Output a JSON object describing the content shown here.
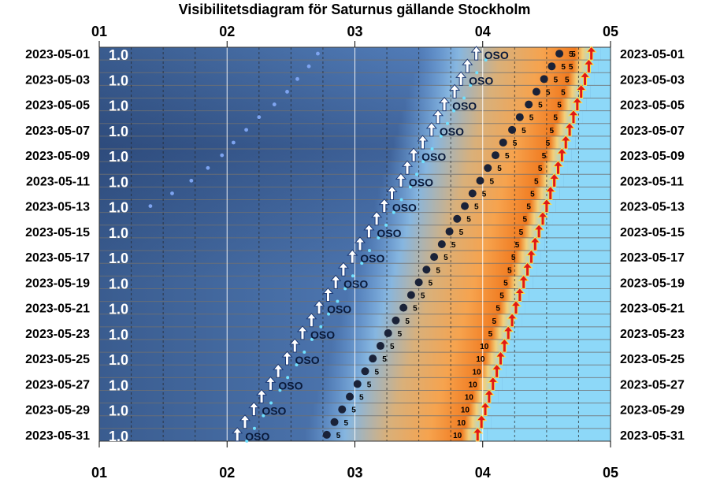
{
  "chart_data": {
    "type": "scatter",
    "title": "Visibilitetsdiagram för Saturnus gällande Stockholm",
    "x_ticks": [
      "01",
      "02",
      "03",
      "04",
      "05"
    ],
    "xlim": [
      1,
      5
    ],
    "dates": [
      "2023-05-01",
      "2023-05-02",
      "2023-05-03",
      "2023-05-04",
      "2023-05-05",
      "2023-05-06",
      "2023-05-07",
      "2023-05-08",
      "2023-05-09",
      "2023-05-10",
      "2023-05-11",
      "2023-05-12",
      "2023-05-13",
      "2023-05-14",
      "2023-05-15",
      "2023-05-16",
      "2023-05-17",
      "2023-05-18",
      "2023-05-19",
      "2023-05-20",
      "2023-05-21",
      "2023-05-22",
      "2023-05-23",
      "2023-05-24",
      "2023-05-25",
      "2023-05-26",
      "2023-05-27",
      "2023-05-28",
      "2023-05-29",
      "2023-05-30",
      "2023-05-31"
    ],
    "y_labels": [
      "2023-05-01",
      "2023-05-03",
      "2023-05-05",
      "2023-05-07",
      "2023-05-09",
      "2023-05-11",
      "2023-05-13",
      "2023-05-15",
      "2023-05-17",
      "2023-05-19",
      "2023-05-21",
      "2023-05-23",
      "2023-05-25",
      "2023-05-27",
      "2023-05-29",
      "2023-05-31"
    ],
    "moon_label": "1.0",
    "direction_label": "OSO",
    "series": [
      {
        "values_hour": [
          3.95,
          3.88,
          3.83,
          3.78,
          3.7,
          3.65,
          3.6,
          3.53,
          3.46,
          3.41,
          3.36,
          3.29,
          3.23,
          3.17,
          3.11,
          3.04,
          2.98,
          2.91,
          2.85,
          2.79,
          2.72,
          2.66,
          2.59,
          2.53,
          2.47,
          2.4,
          2.34,
          2.27,
          2.21,
          2.14,
          2.08
        ]
      },
      {
        "values_hour": [
          4.6,
          4.54,
          4.48,
          4.42,
          4.36,
          4.29,
          4.23,
          4.16,
          4.1,
          4.04,
          3.98,
          3.92,
          3.86,
          3.8,
          3.74,
          3.68,
          3.62,
          3.56,
          3.5,
          3.44,
          3.38,
          3.32,
          3.26,
          3.2,
          3.14,
          3.08,
          3.02,
          2.96,
          2.9,
          2.84,
          2.78
        ],
        "labels": [
          "5",
          "5",
          "5",
          "5",
          "5",
          "5",
          "5",
          "5",
          "5",
          "5",
          "5",
          "5",
          "5",
          "5",
          "5",
          "5",
          "5",
          "5",
          "5",
          "5",
          "5",
          "5",
          "5",
          "5",
          "5",
          "5",
          "5",
          "5",
          "5",
          "5",
          "5"
        ]
      },
      {
        "values_hour": [
          4.85,
          4.83,
          4.8,
          4.77,
          4.74,
          4.71,
          4.68,
          4.65,
          4.62,
          4.59,
          4.56,
          4.53,
          4.5,
          4.47,
          4.44,
          4.41,
          4.38,
          4.35,
          4.32,
          4.29,
          4.26,
          4.23,
          4.2,
          4.17,
          4.14,
          4.11,
          4.08,
          4.05,
          4.02,
          3.99,
          3.96
        ],
        "labels": [
          "5",
          "5",
          "5",
          "5",
          "5",
          "5",
          "5",
          "5",
          "5",
          "5",
          "5",
          "5",
          "5",
          "5",
          "5",
          "5",
          "5",
          "5",
          "5",
          "5",
          "5",
          "5",
          "5",
          "10",
          "10",
          "10",
          "10",
          "10",
          "10",
          "10",
          "10"
        ]
      },
      {
        "values_hour": [
          2.71,
          2.64,
          2.55,
          2.47,
          2.37,
          2.25,
          2.15,
          2.05,
          1.96,
          1.85,
          1.72,
          1.57,
          1.4
        ]
      }
    ]
  }
}
